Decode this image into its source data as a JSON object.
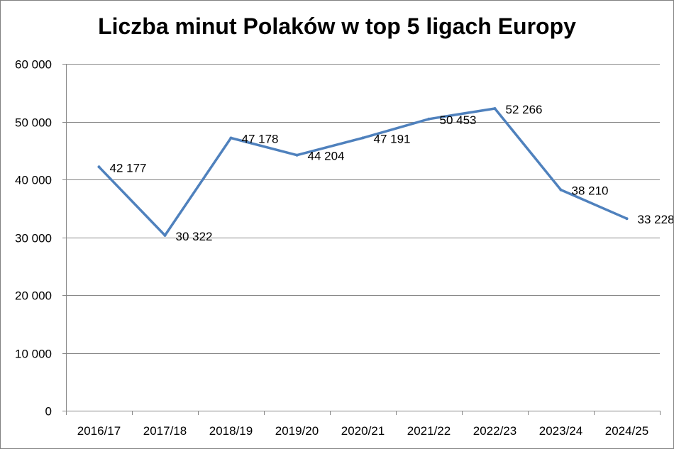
{
  "chart_data": {
    "type": "line",
    "title": "Liczba minut Polaków w top 5 ligach Europy",
    "xlabel": "",
    "ylabel": "",
    "categories": [
      "2016/17",
      "2017/18",
      "2018/19",
      "2019/20",
      "2020/21",
      "2021/22",
      "2022/23",
      "2023/24",
      "2024/25"
    ],
    "series": [
      {
        "values": [
          42177,
          30322,
          47178,
          44204,
          47191,
          50453,
          52266,
          38210,
          33228
        ],
        "labels": [
          "42 177",
          "30 322",
          "47 178",
          "44 204",
          "47 191",
          "50 453",
          "52 266",
          "38 210",
          "33 228"
        ],
        "color": "#4f81bd"
      }
    ],
    "ylim": [
      0,
      60000
    ],
    "yticks": [
      0,
      10000,
      20000,
      30000,
      40000,
      50000,
      60000
    ],
    "ytick_labels": [
      "0",
      "10 000",
      "20 000",
      "30 000",
      "40 000",
      "50 000",
      "60 000"
    ],
    "grid": "horizontal",
    "legend": "none",
    "data_labels": "right"
  }
}
